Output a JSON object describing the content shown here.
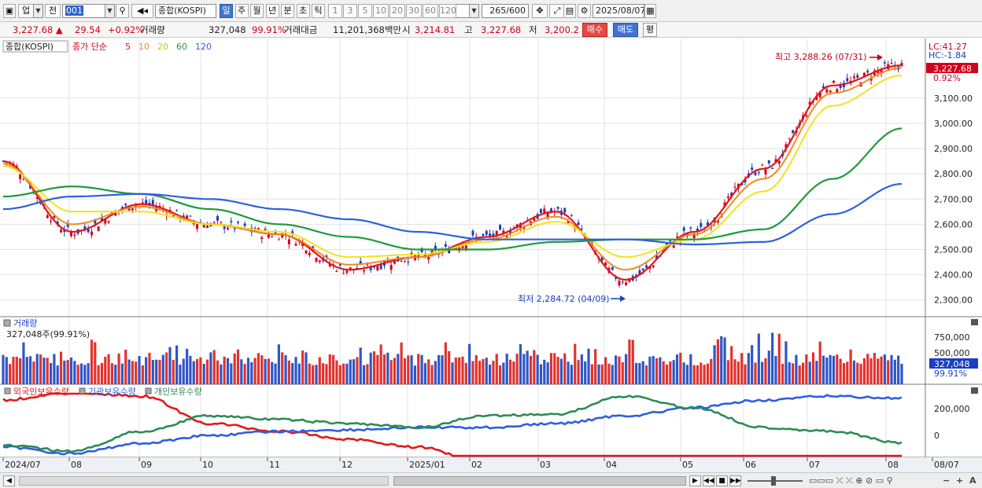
{
  "toolbar": {
    "market_label": "업",
    "prev_label": "전",
    "code_value": "001",
    "search_icon": "magnifier-icon",
    "sound_icon": "speaker-icon",
    "name_value": "종합(KOSPI)",
    "periods": [
      "일",
      "주",
      "월",
      "년",
      "분",
      "초",
      "틱"
    ],
    "selected_period": "일",
    "intervals": [
      "1",
      "3",
      "5",
      "10",
      "20",
      "30",
      "60",
      "120"
    ],
    "count_value": "265",
    "count_total": "/600",
    "date_value": "2025/08/07"
  },
  "infobar": {
    "price": "3,227.68",
    "change": "29.54",
    "change_pct": "+0.92%",
    "volume_label": "거래량",
    "volume": "327,048",
    "volume_ratio": "99.91%",
    "amount_label": "거래대금",
    "amount": "11,201,368백만",
    "open_label": "시",
    "open": "3,214.81",
    "high_label": "고",
    "high": "3,227.68",
    "low_label": "저",
    "low": "3,200.2",
    "buy_label": "매수",
    "sell_label": "매도",
    "avg_label": "평"
  },
  "price_panel": {
    "name": "종합(KOSPI)",
    "ma_label": "종가 단순",
    "ma_periods": [
      {
        "label": "5",
        "color": "#e01a1a"
      },
      {
        "label": "10",
        "color": "#f08a24"
      },
      {
        "label": "20",
        "color": "#f3e21b"
      },
      {
        "label": "60",
        "color": "#1f9a3c"
      },
      {
        "label": "120",
        "color": "#2f5fe0"
      }
    ],
    "lc_label": "LC:41.27",
    "hc_label": "HC:-1.84",
    "current_price_tag": "3,227.68",
    "current_pct_tag": "0.92%",
    "high_annotation": "최고 3,288.26 (07/31)",
    "low_annotation": "최저 2,284.72 (04/09)",
    "y_ticks": [
      "3,100.00",
      "3,000.00",
      "2,900.00",
      "2,800.00",
      "2,700.00",
      "2,600.00",
      "2,500.00",
      "2,400.00",
      "2,300.00"
    ]
  },
  "volume_panel": {
    "title": "거래량",
    "value_text": "327,048주(99.91%)",
    "y_ticks": [
      "750,000",
      "500,000"
    ],
    "current_tag": "327,048",
    "current_pct": "99.91%"
  },
  "holding_panel": {
    "legend": [
      {
        "label": "외국인보유수량",
        "color": "#e01a1a"
      },
      {
        "label": "기관보유수량",
        "color": "#2f5fe0"
      },
      {
        "label": "개인보유수량",
        "color": "#2e8b57"
      }
    ],
    "y_ticks": [
      "200,000",
      "0"
    ]
  },
  "x_axis": {
    "labels": [
      "2024/07",
      "08",
      "09",
      "10",
      "11",
      "12",
      "2025/01",
      "02",
      "03",
      "04",
      "05",
      "06",
      "07",
      "08",
      "08/07"
    ]
  },
  "scrollbar": {
    "icons": [
      "play-icon",
      "rewind-icon",
      "stop-icon",
      "fast-forward-icon"
    ],
    "zoom_out": "−",
    "zoom_in": "+",
    "text_tool": "A"
  },
  "colors": {
    "up": "#d3001c",
    "down": "#1a3fc0",
    "ma5": "#e01a1a",
    "ma10": "#f08a24",
    "ma20": "#f3e21b",
    "ma60": "#1f9a3c",
    "ma120": "#2f5fe0"
  },
  "chart_data": {
    "type": "line",
    "y_range": [
      2240,
      3330
    ],
    "x": [
      "2024/07",
      "08",
      "09",
      "10",
      "11",
      "12",
      "2025/01",
      "02",
      "03",
      "04",
      "05",
      "06",
      "07",
      "08"
    ],
    "series": [
      {
        "name": "5",
        "values": [
          2850,
          2570,
          2680,
          2600,
          2560,
          2420,
          2470,
          2550,
          2650,
          2380,
          2570,
          2820,
          3150,
          3230
        ]
      },
      {
        "name": "10",
        "values": [
          2840,
          2600,
          2670,
          2600,
          2560,
          2440,
          2470,
          2540,
          2630,
          2420,
          2560,
          2780,
          3120,
          3220
        ]
      },
      {
        "name": "20",
        "values": [
          2830,
          2650,
          2650,
          2600,
          2570,
          2470,
          2480,
          2530,
          2610,
          2470,
          2540,
          2730,
          3070,
          3190
        ]
      },
      {
        "name": "60",
        "values": [
          2710,
          2750,
          2720,
          2660,
          2600,
          2550,
          2500,
          2500,
          2530,
          2540,
          2540,
          2580,
          2780,
          2980
        ]
      },
      {
        "name": "120",
        "values": [
          2660,
          2710,
          2720,
          2700,
          2660,
          2620,
          2570,
          2540,
          2540,
          2540,
          2520,
          2530,
          2640,
          2760
        ]
      }
    ],
    "high": {
      "value": 3288.26,
      "date": "07/31"
    },
    "low": {
      "value": 2284.72,
      "date": "04/09"
    }
  }
}
